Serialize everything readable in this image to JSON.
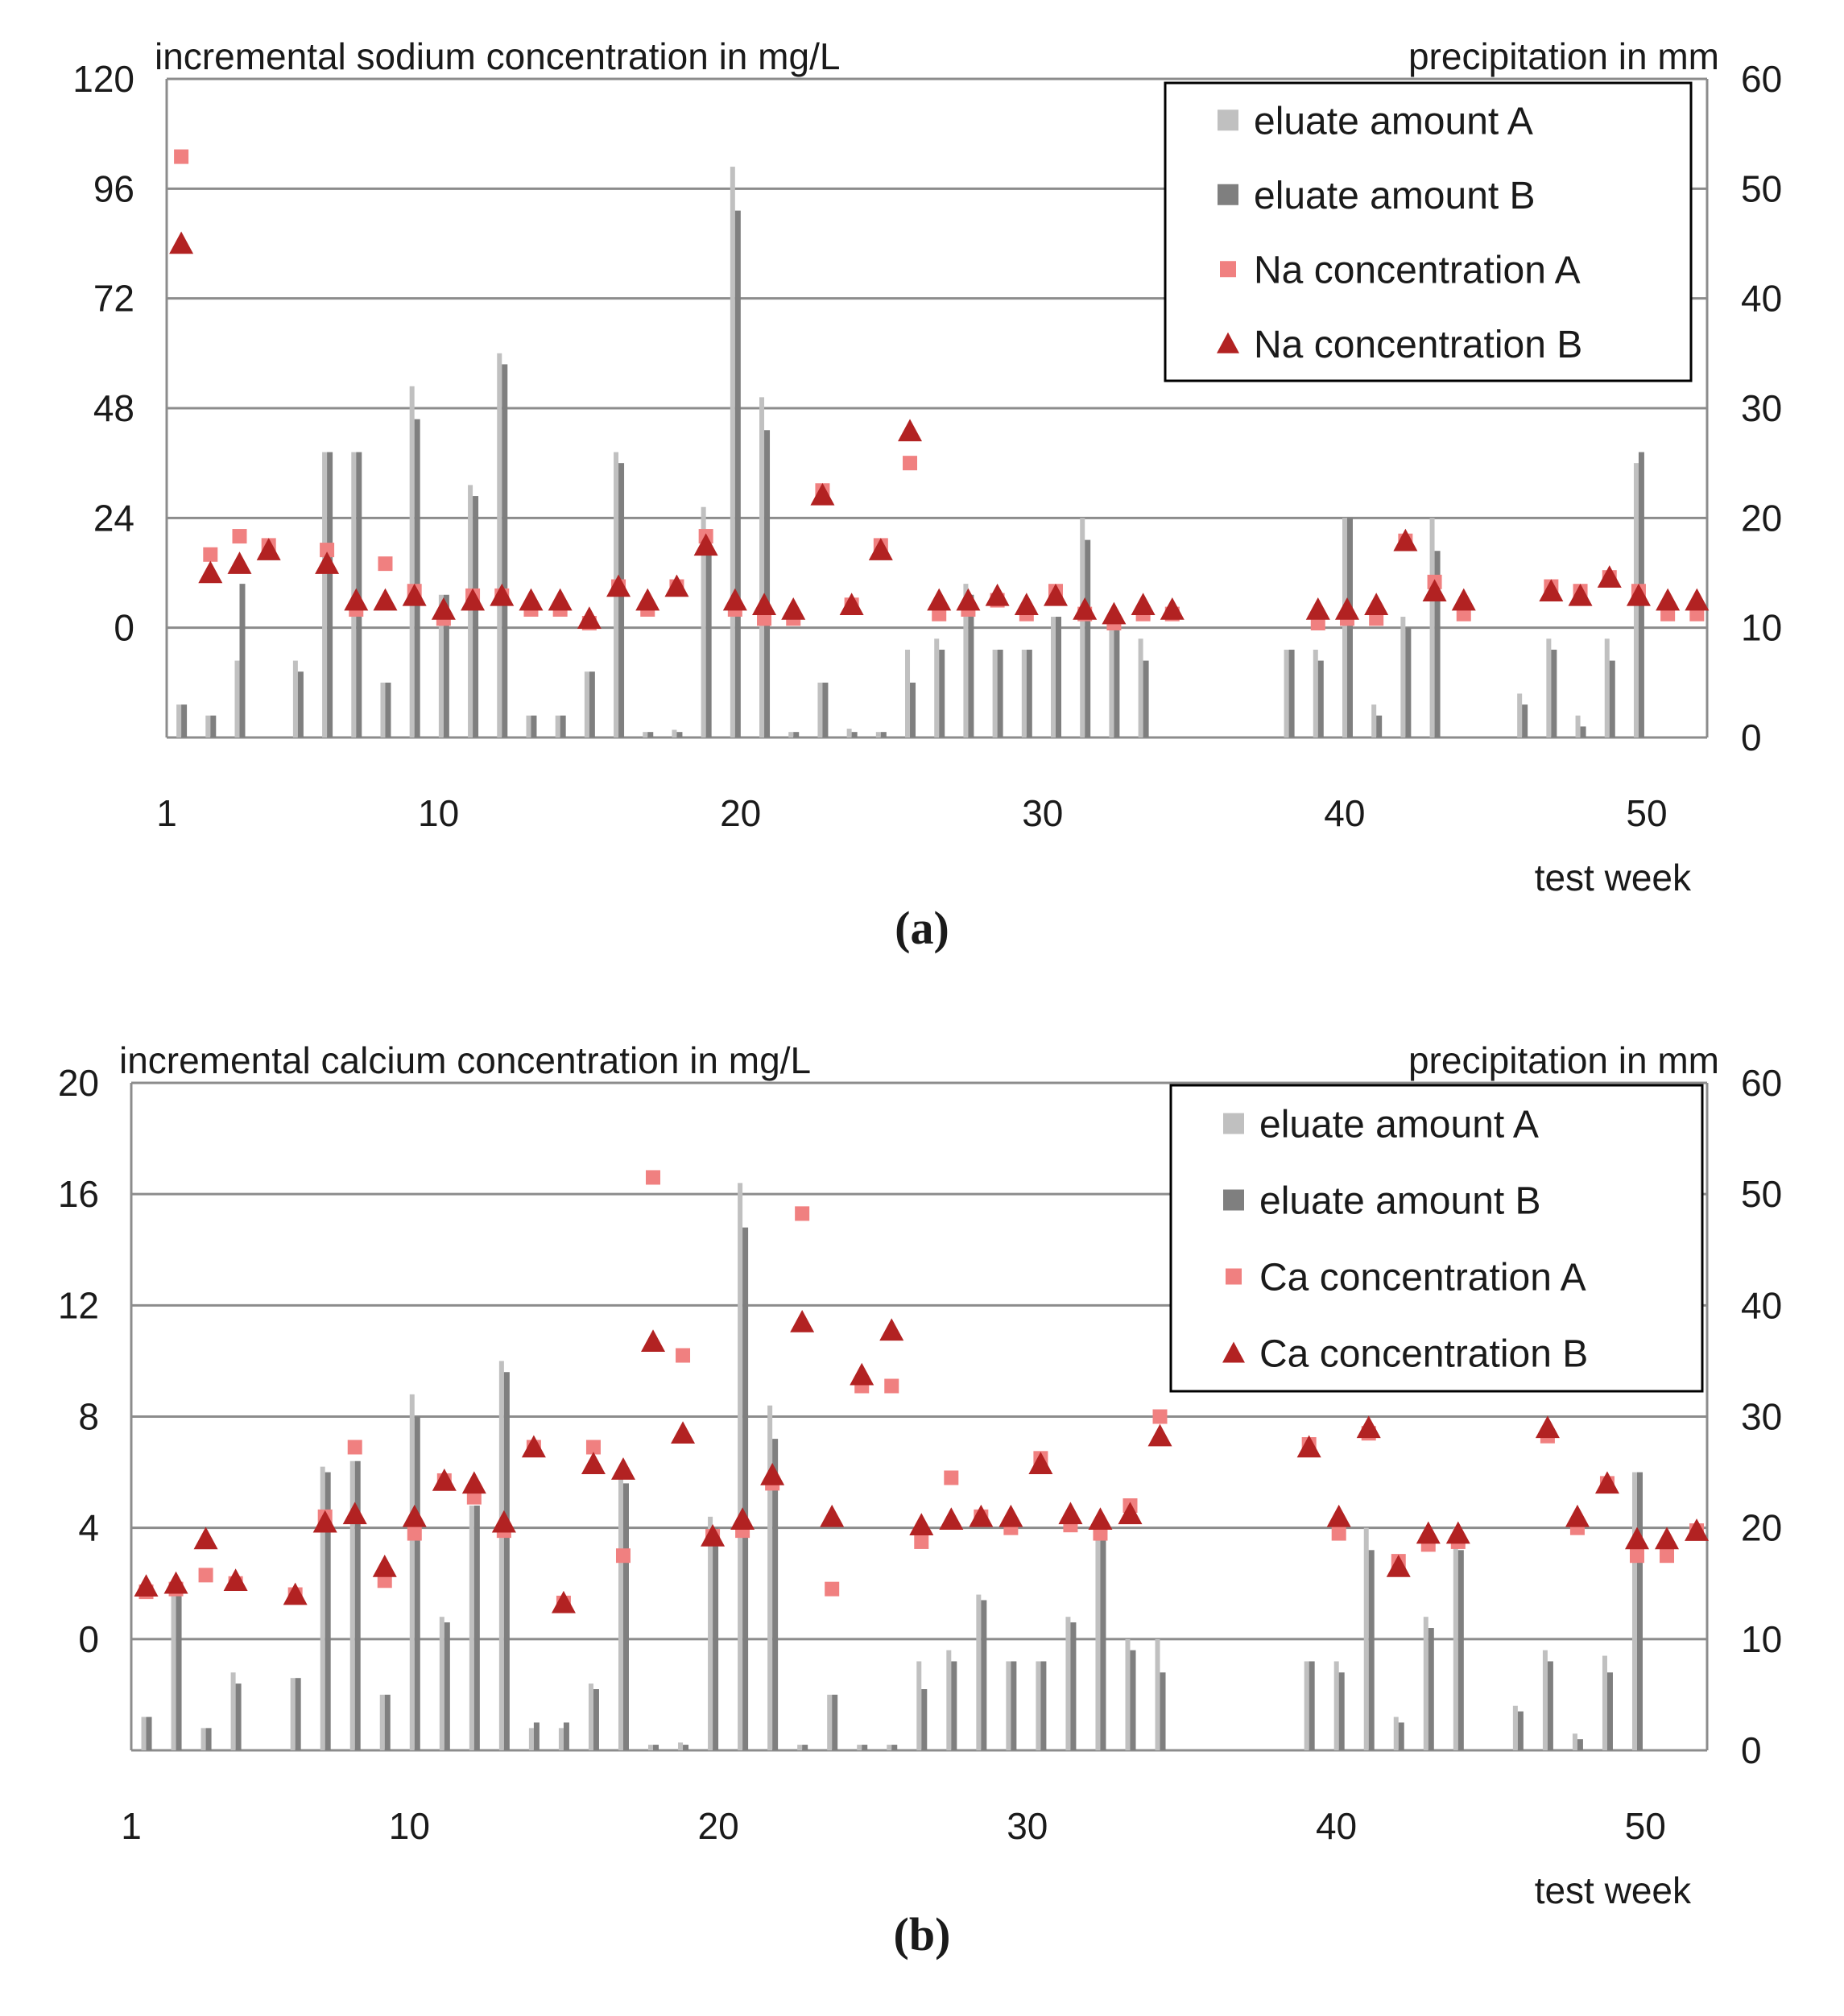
{
  "chart_data": [
    {
      "panel": "(a)",
      "title": "incremental  sodium concentration  in mg/L",
      "type": "bar+scatter",
      "xlabel": "test week",
      "ylabel_left": "incremental  sodium concentration  in mg/L",
      "ylabel_right": "precipitation in mm",
      "x_ticks": [
        1,
        10,
        20,
        30,
        40,
        50
      ],
      "xlim": [
        1,
        52
      ],
      "y_left_ticks": [
        0,
        24,
        48,
        72,
        96,
        120
      ],
      "y_left_lim": [
        -24,
        120
      ],
      "y_right_ticks": [
        0,
        10,
        20,
        30,
        40,
        50,
        60
      ],
      "y_right_lim": [
        0,
        60
      ],
      "legend": [
        "eluate amount A",
        "eluate amount B",
        "Na concentration A",
        "Na concentration B"
      ],
      "colors": {
        "barA": "#c0c0c0",
        "barB": "#7f7f7f",
        "markerA": "#f08080",
        "markerB": "#b22222"
      },
      "bars_A": [
        [
          2,
          3
        ],
        [
          3,
          2
        ],
        [
          4,
          7
        ],
        [
          6,
          7
        ],
        [
          7,
          26
        ],
        [
          8,
          26
        ],
        [
          9,
          5
        ],
        [
          10,
          32
        ],
        [
          11,
          13
        ],
        [
          12,
          23
        ],
        [
          13,
          35
        ],
        [
          14,
          2
        ],
        [
          15,
          2
        ],
        [
          16,
          6
        ],
        [
          17,
          26
        ],
        [
          18,
          0.5
        ],
        [
          19,
          0.7
        ],
        [
          20,
          21
        ],
        [
          21,
          52
        ],
        [
          22,
          31
        ],
        [
          23,
          0.5
        ],
        [
          24,
          5
        ],
        [
          25,
          0.8
        ],
        [
          26,
          0.5
        ],
        [
          27,
          8
        ],
        [
          28,
          9
        ],
        [
          29,
          14
        ],
        [
          30,
          8
        ],
        [
          31,
          8
        ],
        [
          32,
          11
        ],
        [
          33,
          20
        ],
        [
          34,
          10
        ],
        [
          35,
          9
        ],
        [
          40,
          8
        ],
        [
          41,
          8
        ],
        [
          42,
          20
        ],
        [
          43,
          3
        ],
        [
          44,
          11
        ],
        [
          45,
          20
        ],
        [
          48,
          4
        ],
        [
          49,
          9
        ],
        [
          50,
          2
        ],
        [
          51,
          9
        ],
        [
          52,
          25
        ]
      ],
      "bars_B": [
        [
          2,
          3
        ],
        [
          3,
          2
        ],
        [
          4,
          14
        ],
        [
          6,
          6
        ],
        [
          7,
          26
        ],
        [
          8,
          26
        ],
        [
          9,
          5
        ],
        [
          10,
          29
        ],
        [
          11,
          13
        ],
        [
          12,
          22
        ],
        [
          13,
          34
        ],
        [
          14,
          2
        ],
        [
          15,
          2
        ],
        [
          16,
          6
        ],
        [
          17,
          25
        ],
        [
          18,
          0.5
        ],
        [
          19,
          0.5
        ],
        [
          20,
          18
        ],
        [
          21,
          48
        ],
        [
          22,
          28
        ],
        [
          23,
          0.5
        ],
        [
          24,
          5
        ],
        [
          25,
          0.5
        ],
        [
          26,
          0.5
        ],
        [
          27,
          5
        ],
        [
          28,
          8
        ],
        [
          29,
          13
        ],
        [
          30,
          8
        ],
        [
          31,
          8
        ],
        [
          32,
          11
        ],
        [
          33,
          18
        ],
        [
          34,
          10
        ],
        [
          35,
          7
        ],
        [
          40,
          8
        ],
        [
          41,
          7
        ],
        [
          42,
          20
        ],
        [
          43,
          2
        ],
        [
          44,
          10
        ],
        [
          45,
          17
        ],
        [
          48,
          3
        ],
        [
          49,
          8
        ],
        [
          50,
          1
        ],
        [
          51,
          7
        ],
        [
          52,
          26
        ]
      ],
      "scatter_A": [
        [
          2,
          103
        ],
        [
          3,
          16
        ],
        [
          4,
          20
        ],
        [
          5,
          18
        ],
        [
          7,
          17
        ],
        [
          8,
          4
        ],
        [
          9,
          14
        ],
        [
          10,
          8
        ],
        [
          11,
          2
        ],
        [
          12,
          7
        ],
        [
          13,
          7
        ],
        [
          14,
          4
        ],
        [
          15,
          4
        ],
        [
          16,
          1
        ],
        [
          17,
          9
        ],
        [
          18,
          4
        ],
        [
          19,
          9
        ],
        [
          20,
          20
        ],
        [
          21,
          4
        ],
        [
          22,
          2
        ],
        [
          23,
          2
        ],
        [
          24,
          30
        ],
        [
          25,
          5
        ],
        [
          26,
          18
        ],
        [
          27,
          36
        ],
        [
          28,
          3
        ],
        [
          29,
          4
        ],
        [
          30,
          6
        ],
        [
          31,
          3
        ],
        [
          32,
          8
        ],
        [
          33,
          3
        ],
        [
          34,
          1
        ],
        [
          35,
          3
        ],
        [
          36,
          3
        ],
        [
          41,
          1
        ],
        [
          42,
          2
        ],
        [
          43,
          2
        ],
        [
          44,
          19
        ],
        [
          45,
          10
        ],
        [
          46,
          3
        ],
        [
          49,
          9
        ],
        [
          50,
          8
        ],
        [
          51,
          11
        ],
        [
          52,
          8
        ],
        [
          53,
          3
        ],
        [
          54,
          3
        ]
      ],
      "scatter_B": [
        [
          2,
          84
        ],
        [
          3,
          12
        ],
        [
          4,
          14
        ],
        [
          5,
          17
        ],
        [
          7,
          14
        ],
        [
          8,
          6
        ],
        [
          9,
          6
        ],
        [
          10,
          7
        ],
        [
          11,
          4
        ],
        [
          12,
          6
        ],
        [
          13,
          7
        ],
        [
          14,
          6
        ],
        [
          15,
          6
        ],
        [
          16,
          2
        ],
        [
          17,
          9
        ],
        [
          18,
          6
        ],
        [
          19,
          9
        ],
        [
          20,
          18
        ],
        [
          21,
          6
        ],
        [
          22,
          5
        ],
        [
          23,
          4
        ],
        [
          24,
          29
        ],
        [
          25,
          5
        ],
        [
          26,
          17
        ],
        [
          27,
          43
        ],
        [
          28,
          6
        ],
        [
          29,
          6
        ],
        [
          30,
          7
        ],
        [
          31,
          5
        ],
        [
          32,
          7
        ],
        [
          33,
          4
        ],
        [
          34,
          3
        ],
        [
          35,
          5
        ],
        [
          36,
          4
        ],
        [
          41,
          4
        ],
        [
          42,
          4
        ],
        [
          43,
          5
        ],
        [
          44,
          19
        ],
        [
          45,
          8
        ],
        [
          46,
          6
        ],
        [
          49,
          8
        ],
        [
          50,
          7
        ],
        [
          51,
          11
        ],
        [
          52,
          7
        ],
        [
          53,
          6
        ],
        [
          54,
          6
        ]
      ]
    },
    {
      "panel": "(b)",
      "title": "incremental  calcium concentration  in mg/L",
      "type": "bar+scatter",
      "xlabel": "test week",
      "ylabel_left": "incremental  calcium concentration  in mg/L",
      "ylabel_right": "precipitation in mm",
      "x_ticks": [
        1,
        10,
        20,
        30,
        40,
        50
      ],
      "xlim": [
        1,
        52
      ],
      "y_left_ticks": [
        0,
        4,
        8,
        12,
        16,
        20
      ],
      "y_left_lim": [
        -4,
        20
      ],
      "y_right_ticks": [
        0,
        10,
        20,
        30,
        40,
        50,
        60
      ],
      "y_right_lim": [
        0,
        60
      ],
      "legend": [
        "eluate amount A",
        "eluate amount B",
        "Ca concentration A",
        "Ca concentration B"
      ],
      "colors": {
        "barA": "#c0c0c0",
        "barB": "#7f7f7f",
        "markerA": "#f08080",
        "markerB": "#b22222"
      },
      "bars_A": [
        [
          2,
          3
        ],
        [
          3,
          14
        ],
        [
          4,
          2
        ],
        [
          5,
          7
        ],
        [
          7,
          6.5
        ],
        [
          8,
          25.5
        ],
        [
          9,
          26
        ],
        [
          10,
          5
        ],
        [
          11,
          32
        ],
        [
          12,
          12
        ],
        [
          13,
          22
        ],
        [
          14,
          35
        ],
        [
          15,
          2
        ],
        [
          16,
          2
        ],
        [
          17,
          6
        ],
        [
          18,
          25
        ],
        [
          19,
          0.5
        ],
        [
          20,
          0.7
        ],
        [
          21,
          21
        ],
        [
          22,
          51
        ],
        [
          23,
          31
        ],
        [
          24,
          0.5
        ],
        [
          25,
          5
        ],
        [
          26,
          0.5
        ],
        [
          27,
          0.5
        ],
        [
          28,
          8
        ],
        [
          29,
          9
        ],
        [
          30,
          14
        ],
        [
          31,
          8
        ],
        [
          32,
          8
        ],
        [
          33,
          12
        ],
        [
          34,
          20
        ],
        [
          35,
          10
        ],
        [
          36,
          10
        ],
        [
          41,
          8
        ],
        [
          42,
          8
        ],
        [
          43,
          20
        ],
        [
          44,
          3
        ],
        [
          45,
          12
        ],
        [
          46,
          20
        ],
        [
          48,
          4
        ],
        [
          49,
          9
        ],
        [
          50,
          1.5
        ],
        [
          51,
          8.5
        ],
        [
          52,
          25
        ]
      ],
      "bars_B": [
        [
          2,
          3
        ],
        [
          3,
          14
        ],
        [
          4,
          2
        ],
        [
          5,
          6
        ],
        [
          7,
          6.5
        ],
        [
          8,
          25
        ],
        [
          9,
          26
        ],
        [
          10,
          5
        ],
        [
          11,
          30
        ],
        [
          12,
          11.5
        ],
        [
          13,
          22
        ],
        [
          14,
          34
        ],
        [
          15,
          2.5
        ],
        [
          16,
          2.5
        ],
        [
          17,
          5.5
        ],
        [
          18,
          24
        ],
        [
          19,
          0.5
        ],
        [
          20,
          0.5
        ],
        [
          21,
          20
        ],
        [
          22,
          47
        ],
        [
          23,
          28
        ],
        [
          24,
          0.5
        ],
        [
          25,
          5
        ],
        [
          26,
          0.5
        ],
        [
          27,
          0.5
        ],
        [
          28,
          5.5
        ],
        [
          29,
          8
        ],
        [
          30,
          13.5
        ],
        [
          31,
          8
        ],
        [
          32,
          8
        ],
        [
          33,
          11.5
        ],
        [
          34,
          20
        ],
        [
          35,
          9
        ],
        [
          36,
          7
        ],
        [
          41,
          8
        ],
        [
          42,
          7
        ],
        [
          43,
          18
        ],
        [
          44,
          2.5
        ],
        [
          45,
          11
        ],
        [
          46,
          18
        ],
        [
          48,
          3.5
        ],
        [
          49,
          8
        ],
        [
          50,
          1
        ],
        [
          51,
          7
        ],
        [
          52,
          25
        ]
      ],
      "scatter_A": [
        [
          2,
          1.7
        ],
        [
          3,
          1.8
        ],
        [
          4,
          2.3
        ],
        [
          5,
          2.0
        ],
        [
          7,
          1.6
        ],
        [
          8,
          4.4
        ],
        [
          9,
          6.9
        ],
        [
          10,
          2.1
        ],
        [
          11,
          3.8
        ],
        [
          12,
          5.7
        ],
        [
          13,
          5.1
        ],
        [
          14,
          3.9
        ],
        [
          15,
          6.9
        ],
        [
          16,
          1.3
        ],
        [
          17,
          6.9
        ],
        [
          18,
          3.0
        ],
        [
          19,
          16.6
        ],
        [
          20,
          10.2
        ],
        [
          21,
          3.7
        ],
        [
          22,
          3.9
        ],
        [
          23,
          5.6
        ],
        [
          24,
          15.3
        ],
        [
          25,
          1.8
        ],
        [
          26,
          9.1
        ],
        [
          27,
          9.1
        ],
        [
          28,
          3.5
        ],
        [
          29,
          5.8
        ],
        [
          30,
          4.4
        ],
        [
          31,
          4.0
        ],
        [
          32,
          6.5
        ],
        [
          33,
          4.1
        ],
        [
          34,
          3.8
        ],
        [
          35,
          4.8
        ],
        [
          36,
          8.0
        ],
        [
          41,
          7.0
        ],
        [
          42,
          3.8
        ],
        [
          43,
          7.4
        ],
        [
          44,
          2.8
        ],
        [
          45,
          3.4
        ],
        [
          46,
          3.5
        ],
        [
          49,
          7.3
        ],
        [
          50,
          4.0
        ],
        [
          51,
          5.6
        ],
        [
          52,
          3.0
        ],
        [
          53,
          3.0
        ],
        [
          54,
          3.9
        ]
      ],
      "scatter_B": [
        [
          2,
          1.9
        ],
        [
          3,
          2.0
        ],
        [
          4,
          3.6
        ],
        [
          5,
          2.1
        ],
        [
          7,
          1.6
        ],
        [
          8,
          4.2
        ],
        [
          9,
          4.5
        ],
        [
          10,
          2.6
        ],
        [
          11,
          4.4
        ],
        [
          12,
          5.7
        ],
        [
          13,
          5.6
        ],
        [
          14,
          4.2
        ],
        [
          15,
          6.9
        ],
        [
          16,
          1.3
        ],
        [
          17,
          6.3
        ],
        [
          18,
          6.1
        ],
        [
          19,
          10.7
        ],
        [
          20,
          7.4
        ],
        [
          21,
          3.7
        ],
        [
          22,
          4.3
        ],
        [
          23,
          5.9
        ],
        [
          24,
          11.4
        ],
        [
          25,
          4.4
        ],
        [
          26,
          9.5
        ],
        [
          27,
          11.1
        ],
        [
          28,
          4.1
        ],
        [
          29,
          4.3
        ],
        [
          30,
          4.4
        ],
        [
          31,
          4.4
        ],
        [
          32,
          6.3
        ],
        [
          33,
          4.5
        ],
        [
          34,
          4.3
        ],
        [
          35,
          4.5
        ],
        [
          36,
          7.3
        ],
        [
          41,
          6.9
        ],
        [
          42,
          4.4
        ],
        [
          43,
          7.6
        ],
        [
          44,
          2.6
        ],
        [
          45,
          3.8
        ],
        [
          46,
          3.8
        ],
        [
          49,
          7.6
        ],
        [
          50,
          4.4
        ],
        [
          51,
          5.6
        ],
        [
          52,
          3.6
        ],
        [
          53,
          3.6
        ],
        [
          54,
          3.9
        ]
      ]
    }
  ]
}
